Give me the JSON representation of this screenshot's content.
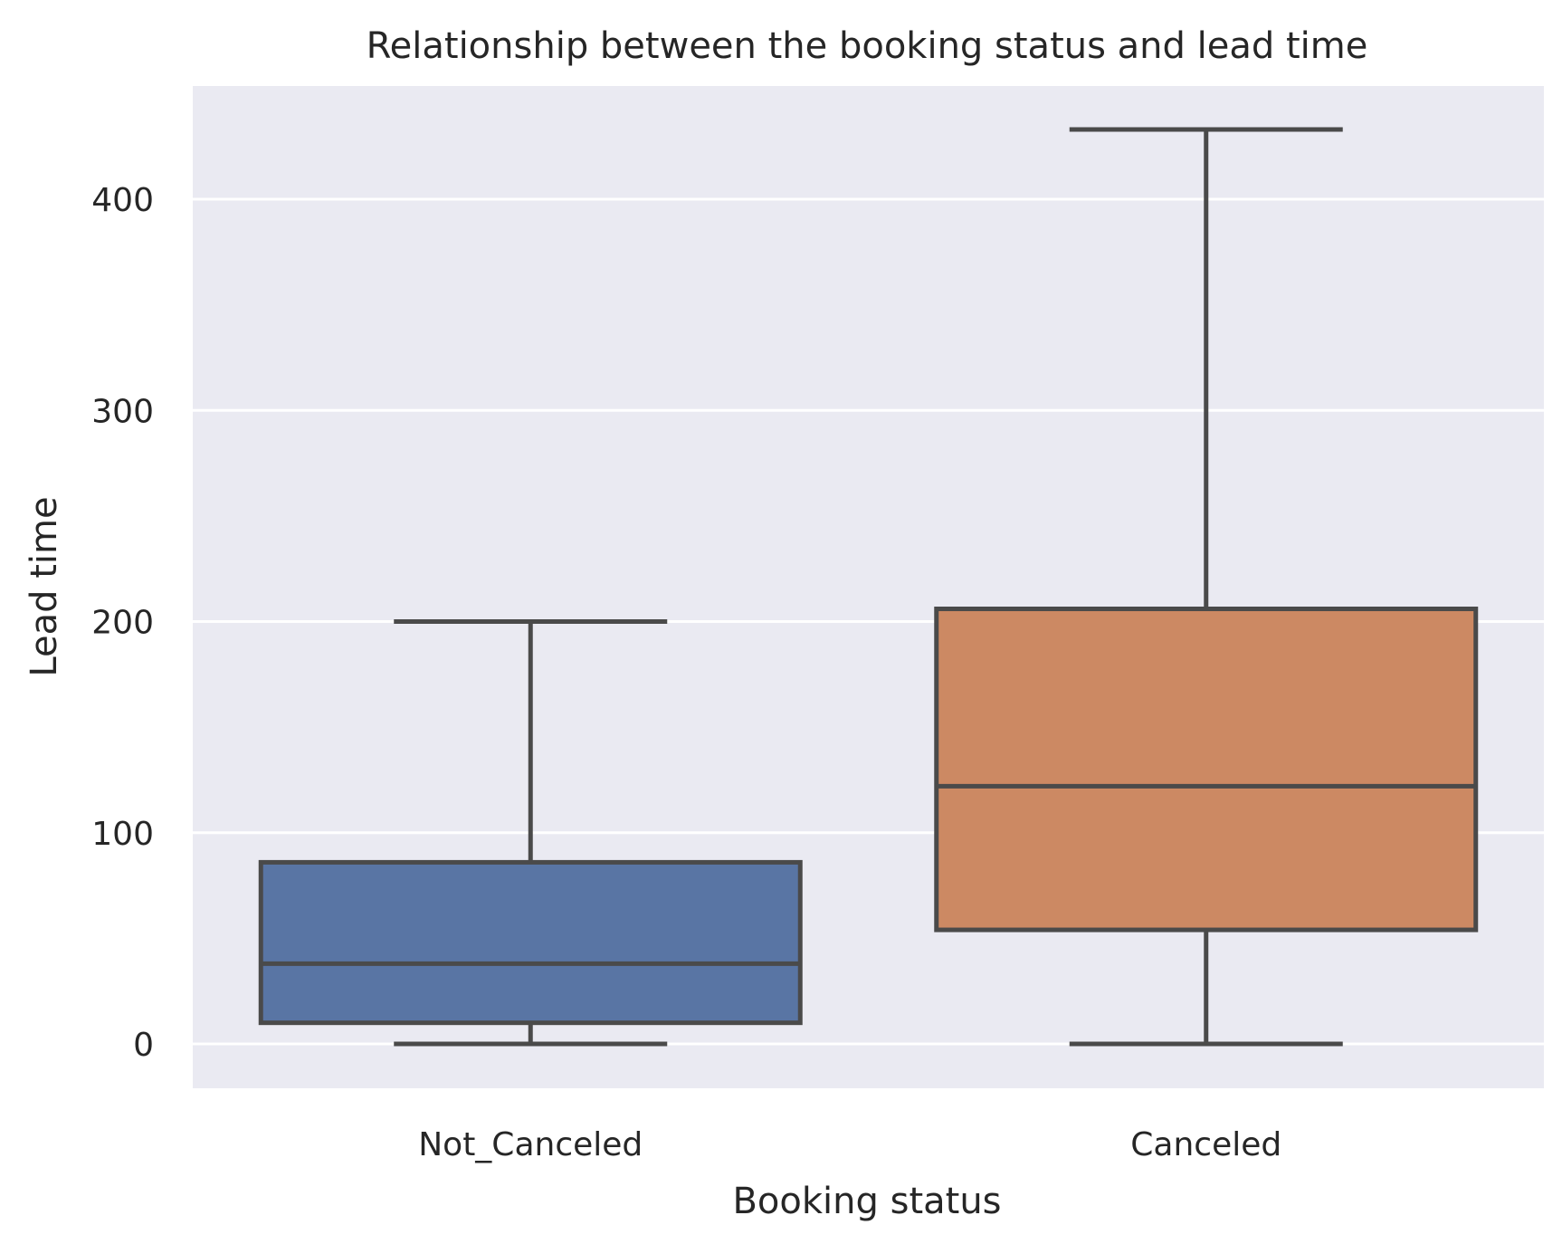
{
  "chart_data": {
    "type": "box",
    "title": "Relationship between the booking status and lead time",
    "xlabel": "Booking status",
    "ylabel": "Lead time",
    "ylim": [
      -20,
      452
    ],
    "yticks": [
      0,
      100,
      200,
      300,
      400
    ],
    "grid": true,
    "colors": {
      "plot_background": "#eaeaf2",
      "grid": "#ffffff",
      "box_edge": "#4a4a4a",
      "text": "#262626"
    },
    "categories": [
      "Not_Canceled",
      "Canceled"
    ],
    "boxes": [
      {
        "category": "Not_Canceled",
        "whisker_low": 0,
        "q1": 10,
        "median": 38,
        "q3": 86,
        "whisker_high": 200,
        "color": "#5975a4"
      },
      {
        "category": "Canceled",
        "whisker_low": 0,
        "q1": 54,
        "median": 122,
        "q3": 206,
        "whisker_high": 433,
        "color": "#cc8963"
      }
    ]
  }
}
